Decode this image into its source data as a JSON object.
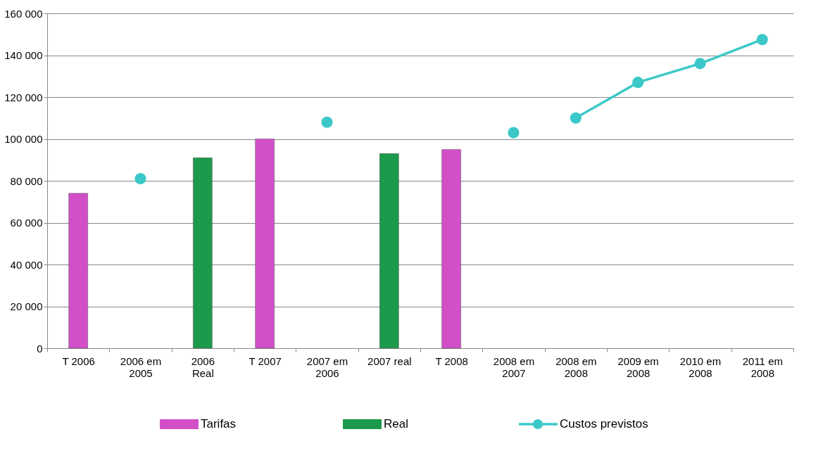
{
  "chart_data": {
    "type": "bar",
    "categories": [
      "T 2006",
      "2006 em\n2005",
      "2006\nReal",
      "T 2007",
      "2007 em\n2006",
      "2007 real",
      "T 2008",
      "2008 em\n2007",
      "2008 em\n2008",
      "2009 em\n2008",
      "2010 em\n2008",
      "2011 em\n2008"
    ],
    "series": [
      {
        "name": "Tarifas",
        "color": "#d24fc8",
        "values": [
          74000,
          null,
          null,
          100000,
          null,
          null,
          95000,
          null,
          null,
          null,
          null,
          null
        ]
      },
      {
        "name": "Real",
        "color": "#1a9a4a",
        "values": [
          null,
          null,
          91000,
          null,
          null,
          93000,
          null,
          null,
          null,
          null,
          null,
          null
        ]
      },
      {
        "name": "Custos  previstos",
        "type": "line",
        "color": "#3cc8c8",
        "values": [
          null,
          null,
          null,
          null,
          null,
          null,
          null,
          null,
          110000,
          127000,
          136000,
          147500
        ]
      },
      {
        "type": "scatter",
        "color": "#3cc8c8",
        "values": [
          null,
          81000,
          null,
          null,
          108000,
          null,
          null,
          103000,
          null,
          null,
          null,
          null
        ]
      }
    ],
    "ylim": [
      0,
      160000
    ],
    "yticks": [
      0,
      {
        "value": 20000,
        "label": "20 000"
      },
      {
        "value": 40000,
        "label": "40 000"
      },
      {
        "value": 60000,
        "label": "60 000"
      },
      {
        "value": 80000,
        "label": "80 000"
      },
      {
        "value": 100000,
        "label": "100 000"
      },
      {
        "value": 120000,
        "label": "120 000"
      },
      {
        "value": 140000,
        "label": "140 000"
      },
      {
        "value": 160000,
        "label": "160 000"
      }
    ],
    "grid": "y",
    "legend": "bottom",
    "marker": "circle"
  }
}
